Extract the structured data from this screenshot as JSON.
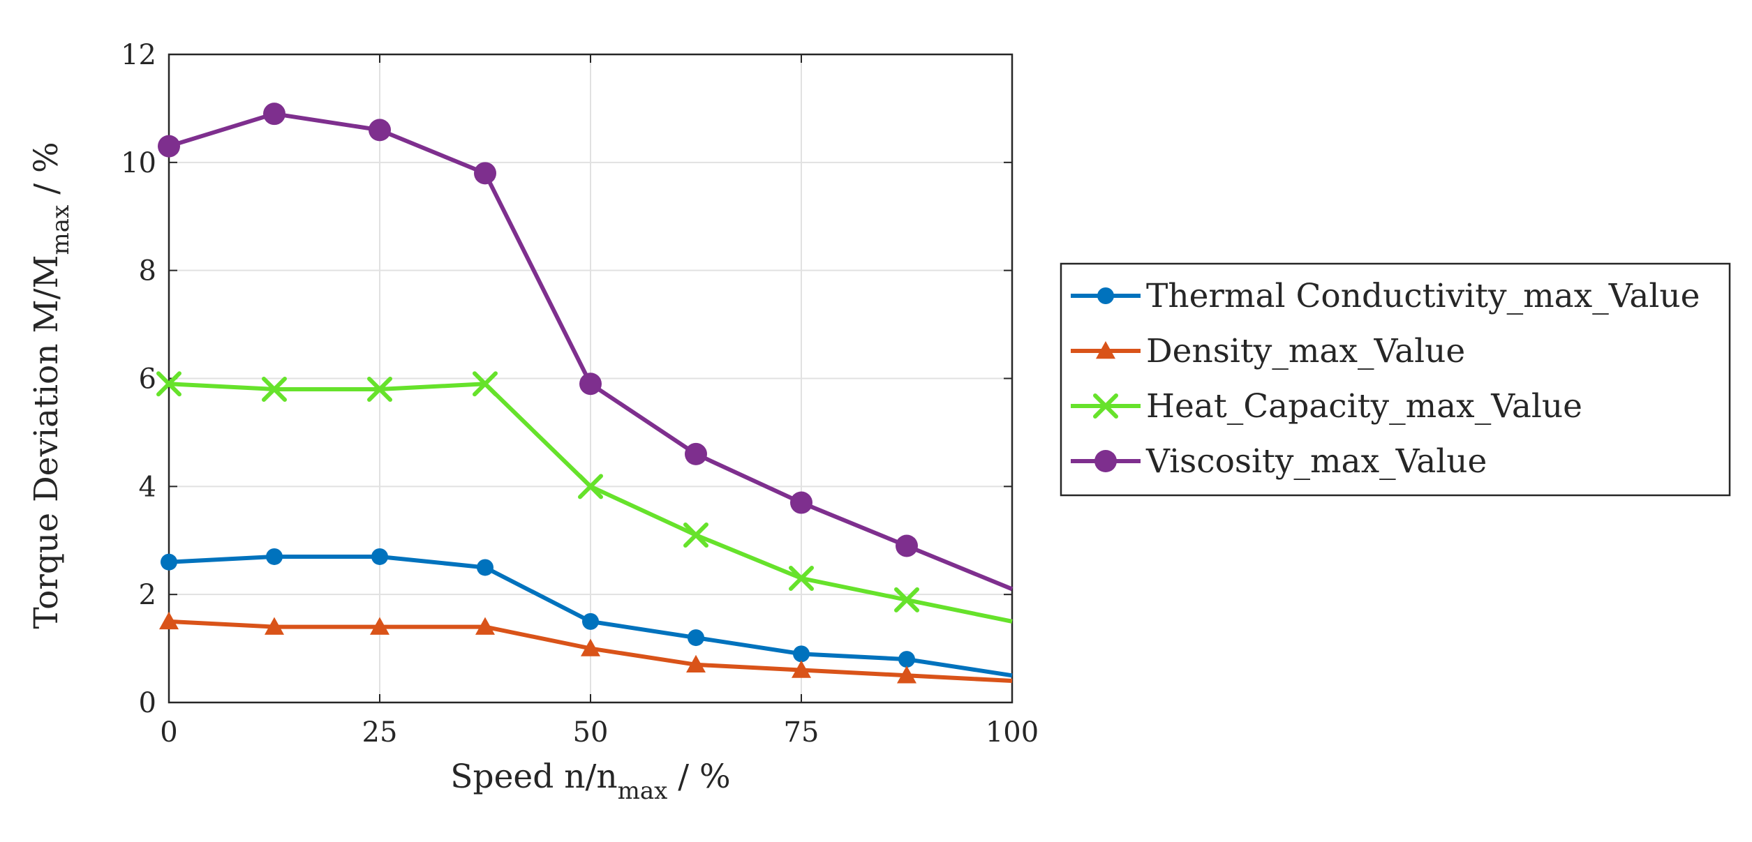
{
  "chart_data": {
    "type": "line",
    "xlabel": "Speed n/n",
    "xlabel_sub": "max",
    "xlabel_tail": " / %",
    "ylabel_main": "Torque Deviation  M/M",
    "ylabel_sub": "max",
    "ylabel_tail": " / %",
    "xlim": [
      0,
      100
    ],
    "ylim": [
      0,
      12
    ],
    "xticks": [
      0,
      25,
      50,
      75,
      100
    ],
    "yticks": [
      0,
      2,
      4,
      6,
      8,
      10,
      12
    ],
    "grid": true,
    "legend_position": "right",
    "x": [
      0,
      12.5,
      25,
      37.5,
      50,
      62.5,
      75,
      87.5,
      100
    ],
    "series": [
      {
        "name": "Thermal Conductivity_max_Value",
        "color": "#0072BD",
        "marker": "circle",
        "values": [
          2.6,
          2.7,
          2.7,
          2.5,
          1.5,
          1.2,
          0.9,
          0.8,
          0.5
        ]
      },
      {
        "name": "Density_max_Value",
        "color": "#D95319",
        "marker": "triangle",
        "values": [
          1.5,
          1.4,
          1.4,
          1.4,
          1.0,
          0.7,
          0.6,
          0.5,
          0.4
        ]
      },
      {
        "name": "Heat_Capacity_max_Value",
        "color": "#66E22B",
        "marker": "x",
        "values": [
          5.9,
          5.8,
          5.8,
          5.9,
          4.0,
          3.1,
          2.3,
          1.9,
          1.5
        ]
      },
      {
        "name": "Viscosity_max_Value",
        "color": "#7E2F8E",
        "marker": "circle-large",
        "values": [
          10.3,
          10.9,
          10.6,
          9.8,
          5.9,
          4.6,
          3.7,
          2.9,
          2.1
        ]
      }
    ]
  }
}
